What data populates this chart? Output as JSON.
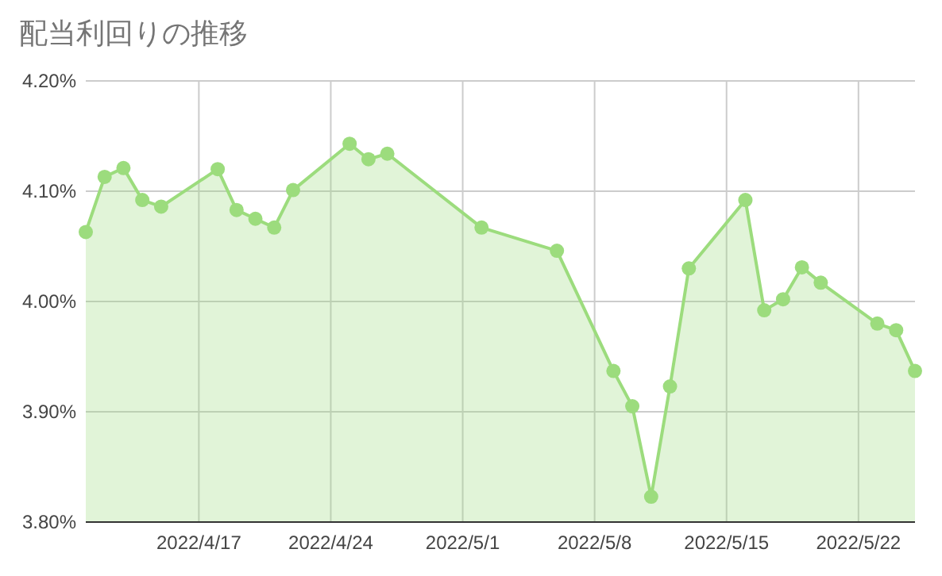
{
  "chart_data": {
    "type": "area",
    "title": "配当利回りの推移",
    "x": [
      "2022-04-11",
      "2022-04-12",
      "2022-04-13",
      "2022-04-14",
      "2022-04-15",
      "2022-04-18",
      "2022-04-19",
      "2022-04-20",
      "2022-04-21",
      "2022-04-22",
      "2022-04-25",
      "2022-04-26",
      "2022-04-27",
      "2022-05-02",
      "2022-05-06",
      "2022-05-09",
      "2022-05-10",
      "2022-05-11",
      "2022-05-12",
      "2022-05-13",
      "2022-05-16",
      "2022-05-17",
      "2022-05-18",
      "2022-05-19",
      "2022-05-20",
      "2022-05-23",
      "2022-05-24",
      "2022-05-25"
    ],
    "series": [
      {
        "color": "#9cdc7d",
        "values": [
          4.063,
          4.113,
          4.121,
          4.092,
          4.086,
          4.12,
          4.083,
          4.075,
          4.067,
          4.101,
          4.143,
          4.129,
          4.134,
          4.067,
          4.046,
          3.937,
          3.905,
          3.823,
          3.923,
          4.03,
          4.092,
          3.992,
          4.002,
          4.031,
          4.017,
          3.98,
          3.974,
          3.937
        ]
      }
    ],
    "xlim": [
      "2022-04-11",
      "2022-05-25"
    ],
    "xticks": [
      {
        "value": "2022-04-17",
        "label": "2022/4/17"
      },
      {
        "value": "2022-04-24",
        "label": "2022/4/24"
      },
      {
        "value": "2022-05-01",
        "label": "2022/5/1"
      },
      {
        "value": "2022-05-08",
        "label": "2022/5/8"
      },
      {
        "value": "2022-05-15",
        "label": "2022/5/15"
      },
      {
        "value": "2022-05-22",
        "label": "2022/5/22"
      }
    ],
    "ylim": [
      3.8,
      4.2
    ],
    "yticks": [
      {
        "value": 3.8,
        "label": "3.80%"
      },
      {
        "value": 3.9,
        "label": "3.90%"
      },
      {
        "value": 4.0,
        "label": "4.00%"
      },
      {
        "value": 4.1,
        "label": "4.10%"
      },
      {
        "value": 4.2,
        "label": "4.20%"
      }
    ],
    "grid": true,
    "marker": "circle"
  }
}
